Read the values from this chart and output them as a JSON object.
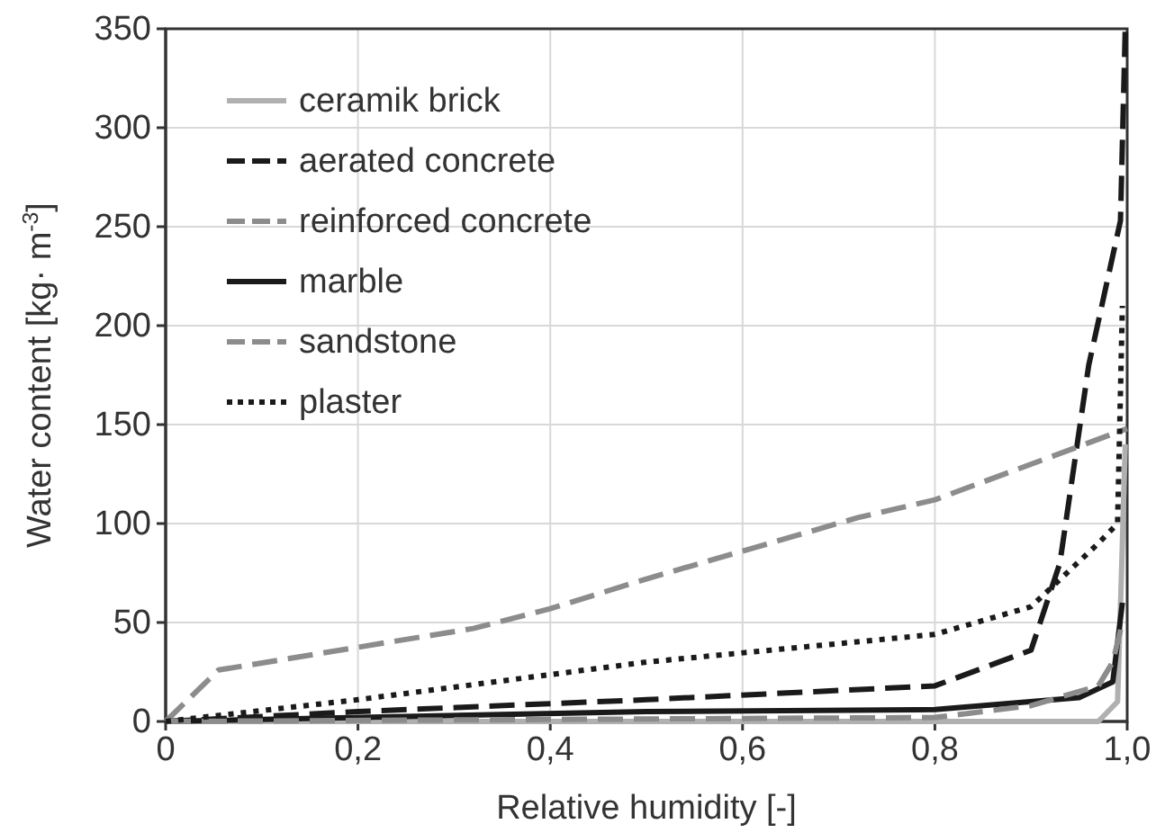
{
  "chart_data": {
    "type": "line",
    "xlabel": "Relative humidity [-]",
    "ylabel": "Water content  [kg· m$^{-3}$]",
    "xlim": [
      0,
      1
    ],
    "ylim": [
      0,
      350
    ],
    "xticks": [
      0,
      {
        "value": 0.2,
        "label": "0,2"
      },
      {
        "value": 0.4,
        "label": "0,4"
      },
      {
        "value": 0.6,
        "label": "0,6"
      },
      {
        "value": 0.8,
        "label": "0,8"
      },
      {
        "value": 1,
        "label": "1,0"
      }
    ],
    "yticks": [
      0,
      50,
      100,
      150,
      200,
      250,
      300,
      350
    ],
    "grid": true,
    "legend": "top left",
    "marker": "none",
    "series": [
      {
        "name": "ceramik brick",
        "color": "#b0b0b0",
        "line_style": "solid",
        "x": [
          0,
          0.5,
          0.97,
          0.99,
          0.995,
          0.998
        ],
        "values": [
          0,
          0,
          0,
          10,
          90,
          140
        ]
      },
      {
        "name": "aerated concrete",
        "color": "#1a1a1a",
        "line_style": "dashed",
        "x": [
          0,
          0.2,
          0.5,
          0.8,
          0.9,
          0.93,
          0.96,
          0.993,
          0.998
        ],
        "values": [
          0,
          5,
          11,
          18,
          36,
          80,
          180,
          253,
          350
        ]
      },
      {
        "name": "reinforced concrete",
        "color": "#8c8c8c",
        "line_style": "dashed",
        "x": [
          0,
          0.055,
          0.32,
          0.4,
          0.5,
          0.72,
          0.8,
          1.0
        ],
        "values": [
          0,
          26,
          47,
          57,
          72,
          103,
          112,
          148
        ]
      },
      {
        "name": "marble",
        "color": "#1a1a1a",
        "line_style": "solid",
        "x": [
          0,
          0.5,
          0.8,
          0.95,
          0.985,
          0.995
        ],
        "values": [
          0,
          5,
          6,
          12,
          20,
          60
        ]
      },
      {
        "name": "sandstone",
        "color": "#8c8c8c",
        "line_style": "dashed",
        "x": [
          0,
          0.8,
          0.9,
          0.97,
          0.985,
          0.995
        ],
        "values": [
          0,
          2,
          8,
          18,
          30,
          50
        ]
      },
      {
        "name": "plaster",
        "color": "#1a1a1a",
        "line_style": "dotted",
        "x": [
          0,
          0.2,
          0.5,
          0.8,
          0.9,
          0.97,
          0.99,
          0.995
        ],
        "values": [
          0,
          11,
          30,
          44,
          58,
          90,
          100,
          210
        ]
      }
    ]
  }
}
